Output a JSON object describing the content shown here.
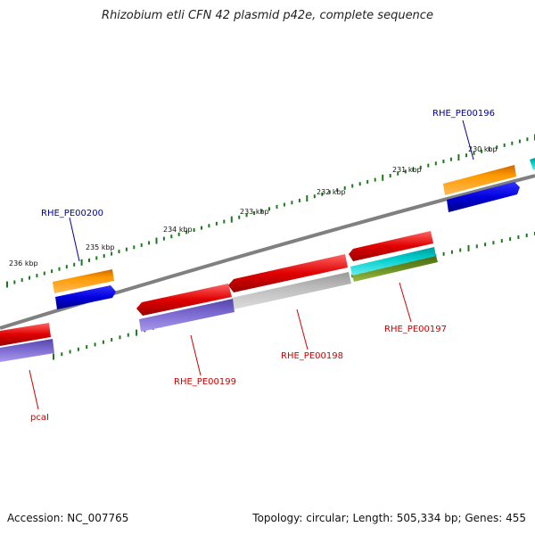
{
  "title": "Rhizobium etli CFN 42 plasmid p42e, complete sequence",
  "footer": {
    "accession": "Accession: NC_007765",
    "summary": "Topology: circular; Length: 505,334 bp; Genes: 455"
  },
  "ticks": [
    {
      "label": "230 kbp",
      "kbp": 230
    },
    {
      "label": "231 kbp",
      "kbp": 231
    },
    {
      "label": "232 kbp",
      "kbp": 232
    },
    {
      "label": "233 kbp",
      "kbp": 233
    },
    {
      "label": "234 kbp",
      "kbp": 234
    },
    {
      "label": "235 kbp",
      "kbp": 235
    },
    {
      "label": "236 kbp",
      "kbp": 236
    }
  ],
  "gene_labels": [
    {
      "text": "RHE_PE00196",
      "color": "#000099"
    },
    {
      "text": "RHE_PE00200",
      "color": "#000099"
    },
    {
      "text": "RHE_PE00197",
      "color": "#cc0000"
    },
    {
      "text": "RHE_PE00198",
      "color": "#cc0000"
    },
    {
      "text": "RHE_PE00199",
      "color": "#cc0000"
    },
    {
      "text": "pcaI",
      "color": "#cc0000"
    }
  ],
  "colors": {
    "backbone": "#808080",
    "tick": "#1a7a1a",
    "gene_red": "#e00000",
    "gene_orange": "#ff9900",
    "gene_blue": "#0000dd",
    "gene_purple": "#7766cc",
    "gene_grey": "#bbbbbb",
    "gene_cyan": "#00cccc",
    "gene_olive": "#6b8e23"
  }
}
